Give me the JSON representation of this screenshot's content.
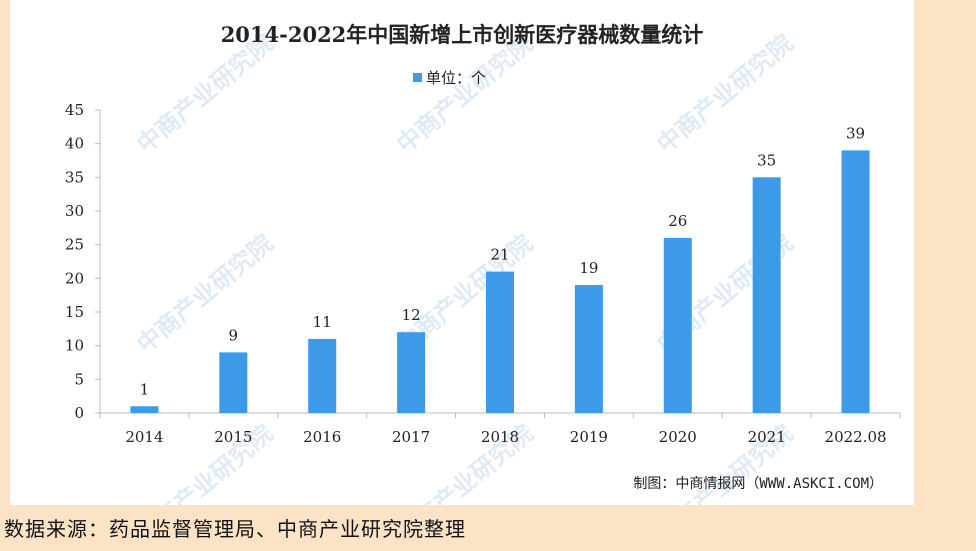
{
  "chart_data": {
    "type": "bar",
    "title": "2014-2022年中国新增上市创新医疗器械数量统计",
    "legend": {
      "label": "单位：个",
      "placement": "top-center"
    },
    "categories": [
      "2014",
      "2015",
      "2016",
      "2017",
      "2018",
      "2019",
      "2020",
      "2021",
      "2022.08"
    ],
    "values": [
      1,
      9,
      11,
      12,
      21,
      19,
      26,
      35,
      39
    ],
    "ylim": [
      0,
      45
    ],
    "yticks": [
      0,
      5,
      10,
      15,
      20,
      25,
      30,
      35,
      40,
      45
    ],
    "xlabel": "",
    "ylabel": "",
    "grid": false,
    "bar_color": "#3d9ae8",
    "credit": "制图：中商情报网（WWW.ASKCI.COM）"
  },
  "watermark": "中商产业研究院",
  "source_note": "数据来源：药品监督管理局、中商产业研究院整理"
}
